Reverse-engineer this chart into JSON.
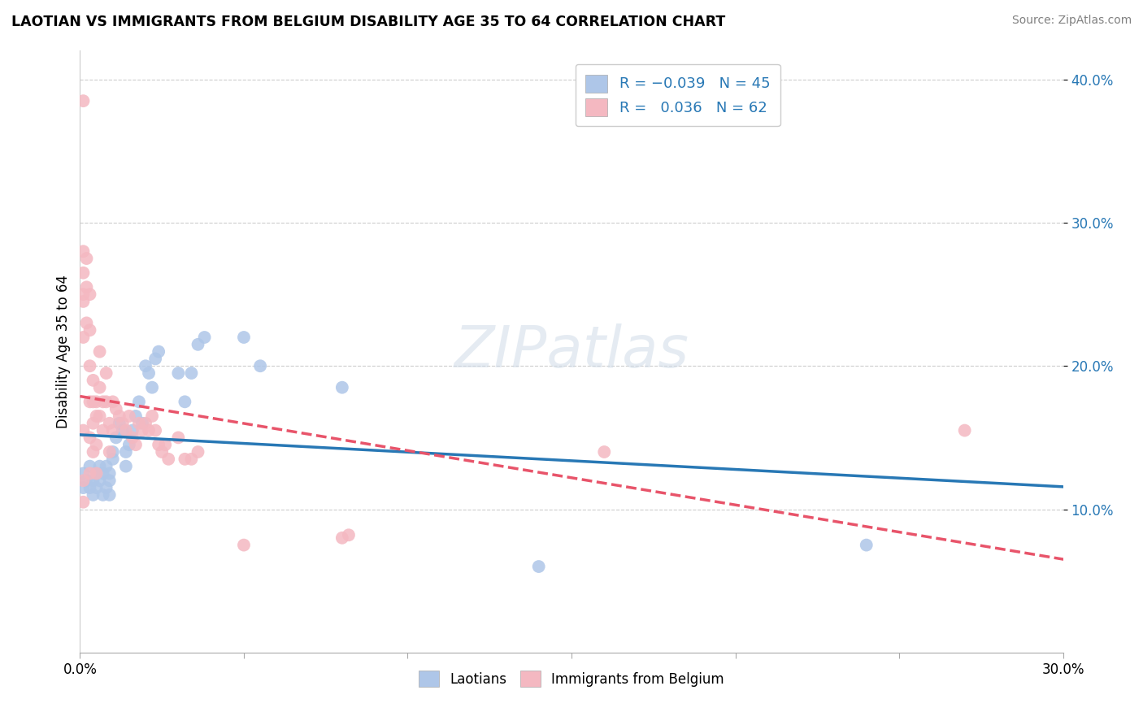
{
  "title": "LAOTIAN VS IMMIGRANTS FROM BELGIUM DISABILITY AGE 35 TO 64 CORRELATION CHART",
  "source": "Source: ZipAtlas.com",
  "ylabel_label": "Disability Age 35 to 64",
  "x_min": 0.0,
  "x_max": 0.3,
  "y_min": 0.0,
  "y_max": 0.42,
  "y_ticks": [
    0.1,
    0.2,
    0.3,
    0.4
  ],
  "y_tick_labels": [
    "10.0%",
    "20.0%",
    "30.0%",
    "40.0%"
  ],
  "x_ticks": [
    0.0,
    0.05,
    0.1,
    0.15,
    0.2,
    0.25,
    0.3
  ],
  "laotian_color": "#aec6e8",
  "belgium_color": "#f4b8c1",
  "laotian_line_color": "#2878b5",
  "belgium_line_color": "#e8546a",
  "watermark_text": "ZIPatlas",
  "laotian_x": [
    0.001,
    0.001,
    0.002,
    0.003,
    0.003,
    0.004,
    0.004,
    0.005,
    0.005,
    0.006,
    0.006,
    0.007,
    0.007,
    0.008,
    0.008,
    0.009,
    0.009,
    0.009,
    0.01,
    0.01,
    0.011,
    0.012,
    0.013,
    0.014,
    0.014,
    0.015,
    0.016,
    0.017,
    0.018,
    0.019,
    0.02,
    0.021,
    0.022,
    0.023,
    0.024,
    0.03,
    0.032,
    0.034,
    0.036,
    0.038,
    0.05,
    0.055,
    0.08,
    0.14,
    0.24
  ],
  "laotian_y": [
    0.125,
    0.115,
    0.12,
    0.13,
    0.115,
    0.11,
    0.12,
    0.115,
    0.125,
    0.12,
    0.13,
    0.11,
    0.125,
    0.115,
    0.13,
    0.12,
    0.11,
    0.125,
    0.14,
    0.135,
    0.15,
    0.16,
    0.155,
    0.14,
    0.13,
    0.145,
    0.155,
    0.165,
    0.175,
    0.16,
    0.2,
    0.195,
    0.185,
    0.205,
    0.21,
    0.195,
    0.175,
    0.195,
    0.215,
    0.22,
    0.22,
    0.2,
    0.185,
    0.06,
    0.075
  ],
  "belgium_x": [
    0.001,
    0.001,
    0.001,
    0.001,
    0.001,
    0.001,
    0.001,
    0.001,
    0.001,
    0.002,
    0.002,
    0.002,
    0.003,
    0.003,
    0.003,
    0.003,
    0.003,
    0.003,
    0.004,
    0.004,
    0.004,
    0.004,
    0.005,
    0.005,
    0.005,
    0.005,
    0.006,
    0.006,
    0.006,
    0.007,
    0.007,
    0.008,
    0.008,
    0.009,
    0.009,
    0.01,
    0.01,
    0.011,
    0.012,
    0.013,
    0.014,
    0.015,
    0.016,
    0.017,
    0.018,
    0.019,
    0.02,
    0.021,
    0.022,
    0.023,
    0.024,
    0.025,
    0.026,
    0.027,
    0.03,
    0.032,
    0.034,
    0.036,
    0.05,
    0.08,
    0.082,
    0.16,
    0.27
  ],
  "belgium_y": [
    0.385,
    0.28,
    0.265,
    0.25,
    0.245,
    0.22,
    0.155,
    0.12,
    0.105,
    0.275,
    0.255,
    0.23,
    0.25,
    0.225,
    0.2,
    0.175,
    0.15,
    0.125,
    0.19,
    0.175,
    0.16,
    0.14,
    0.175,
    0.165,
    0.145,
    0.125,
    0.21,
    0.185,
    0.165,
    0.175,
    0.155,
    0.195,
    0.175,
    0.16,
    0.14,
    0.175,
    0.155,
    0.17,
    0.165,
    0.16,
    0.155,
    0.165,
    0.15,
    0.145,
    0.16,
    0.155,
    0.16,
    0.155,
    0.165,
    0.155,
    0.145,
    0.14,
    0.145,
    0.135,
    0.15,
    0.135,
    0.135,
    0.14,
    0.075,
    0.08,
    0.082,
    0.14,
    0.155
  ]
}
